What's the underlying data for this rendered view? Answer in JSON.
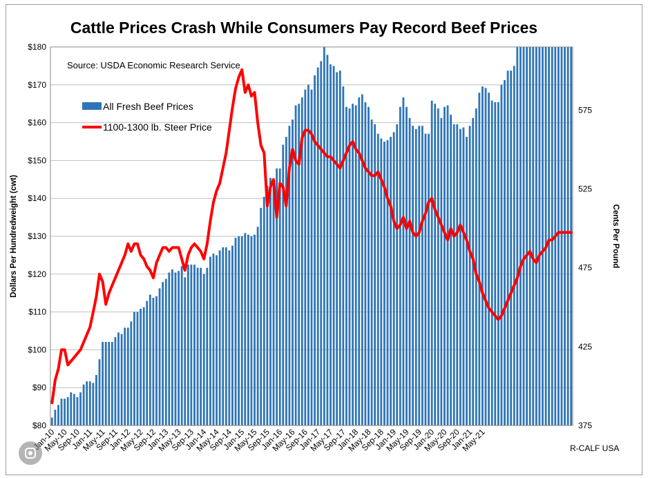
{
  "chart_data": {
    "type": "bar+line",
    "title": "Cattle Prices Crash While Consumers Pay Record Beef Prices",
    "source_note": "Source:  USDA Economic Research Service",
    "credit": "R-CALF USA",
    "ylabel_left": "Dollars Per Hundredweight (cwt)",
    "ylabel_right": "Cents Per Pound",
    "ylim_left": [
      80,
      180
    ],
    "ylim_right": [
      375,
      615
    ],
    "yticks_left": [
      "$80",
      "$90",
      "$100",
      "$110",
      "$120",
      "$130",
      "$140",
      "$150",
      "$160",
      "$170",
      "$180"
    ],
    "yticks_right": [
      "375",
      "425",
      "475",
      "525",
      "575"
    ],
    "xtick_labels": [
      "Jan-10",
      "May-10",
      "Sep-10",
      "Jan-11",
      "May-11",
      "Sep-11",
      "Jan-12",
      "May-12",
      "Sep-12",
      "Jan-13",
      "May-13",
      "Sep-13",
      "Jan-14",
      "May-14",
      "Sep-14",
      "Jan-15",
      "May-15",
      "Sep-15",
      "Jan-16",
      "May-16",
      "Sep-16",
      "Jan-17",
      "May-17",
      "Sep-17",
      "Jan-18",
      "May-18",
      "Sep-18",
      "Jan-19",
      "May-19",
      "Sep-19",
      "Jan-20",
      "May-20",
      "Sep-20",
      "Jan-21",
      "May-21"
    ],
    "grid": "horizontal",
    "legend_position": "top-left",
    "series": [
      {
        "name": "All Fresh Beef Prices",
        "type": "bar",
        "axis": "right",
        "unit": "cents per pound",
        "color": "#2E75B6",
        "start": "Jan-10",
        "frequency": "monthly",
        "values": [
          380,
          385,
          388,
          392,
          392,
          393,
          396,
          395,
          393,
          396,
          401,
          403,
          403,
          402,
          407,
          417,
          428,
          428,
          428,
          428,
          431,
          434,
          433,
          437,
          437,
          441,
          447,
          447,
          449,
          450,
          454,
          458,
          456,
          457,
          462,
          466,
          468,
          472,
          474,
          472,
          473,
          476,
          469,
          477,
          477,
          477,
          475,
          475,
          471,
          475,
          482,
          484,
          483,
          486,
          488,
          488,
          486,
          489,
          494,
          495,
          495,
          497,
          496,
          495,
          496,
          501,
          513,
          520,
          527,
          532,
          530,
          538,
          538,
          553,
          558,
          565,
          569,
          578,
          579,
          583,
          588,
          591,
          588,
          597,
          602,
          606,
          615,
          610,
          604,
          603,
          599,
          600,
          590,
          577,
          576,
          579,
          578,
          583,
          585,
          580,
          577,
          569,
          566,
          560,
          557,
          555,
          556,
          558,
          561,
          566,
          577,
          583,
          577,
          570,
          565,
          563,
          565,
          565,
          560,
          560,
          581,
          579,
          576,
          570,
          577,
          578,
          572,
          566,
          566,
          563,
          564,
          558,
          565,
          570,
          576,
          586,
          590,
          589,
          586,
          581,
          580,
          580,
          591,
          594,
          600,
          600,
          603,
          615,
          615,
          615,
          615,
          615,
          615,
          615,
          615,
          615,
          615,
          615,
          615,
          615,
          615,
          615,
          615,
          615,
          615
        ]
      },
      {
        "name": "1100-1300 lb. Steer Price",
        "type": "line",
        "axis": "left",
        "unit": "dollars per cwt",
        "color": "#FF0000",
        "start": "Jan-10",
        "frequency": "monthly",
        "values": [
          86,
          92,
          95,
          100,
          100,
          96,
          97,
          98,
          99,
          100,
          102,
          104,
          106,
          110,
          114,
          120,
          118,
          112,
          115,
          117,
          119,
          121,
          123,
          125,
          128,
          126,
          128,
          128,
          125,
          124,
          122,
          121,
          119,
          123,
          125,
          127,
          127,
          126,
          127,
          127,
          127,
          124,
          121,
          125,
          127,
          128,
          127,
          126,
          124,
          128,
          134,
          139,
          142,
          144,
          148,
          152,
          158,
          164,
          169,
          172,
          174,
          168,
          170,
          167,
          168,
          160,
          154,
          152,
          138,
          143,
          145,
          135,
          144,
          143,
          138,
          148,
          153,
          150,
          149,
          156,
          158,
          158,
          157,
          155,
          154,
          153,
          152,
          151,
          151,
          150,
          149,
          148,
          150,
          152,
          154,
          155,
          153,
          152,
          150,
          148,
          147,
          146,
          146,
          147,
          145,
          143,
          140,
          138,
          134,
          132,
          133,
          135,
          132,
          134,
          131,
          130,
          131,
          134,
          136,
          139,
          140,
          137,
          135,
          133,
          131,
          129,
          132,
          130,
          131,
          133,
          131,
          129,
          126,
          124,
          120,
          118,
          115,
          113,
          111,
          110,
          109,
          108,
          109,
          111,
          113,
          115,
          117,
          119,
          122,
          124,
          125,
          126,
          124,
          123,
          125,
          126,
          127,
          129,
          129,
          130,
          131,
          131,
          131,
          131,
          131
        ]
      }
    ]
  }
}
